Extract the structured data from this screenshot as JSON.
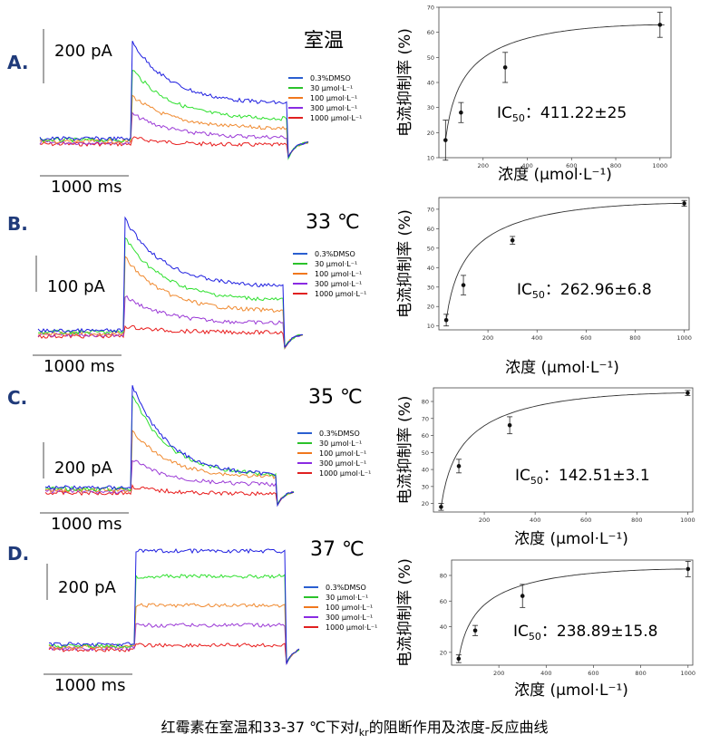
{
  "caption": {
    "before": "红霉素在室温和33-37 ℃下对",
    "italic": "I",
    "sub": "kr",
    "after": "的阻断作用及浓度-反应曲线"
  },
  "legend_colors": [
    "#2a5fd0",
    "#2bc22b",
    "#f0781e",
    "#8a2be2",
    "#e02020"
  ],
  "trace_colors": [
    "#1f1fe0",
    "#2ee02e",
    "#f08a30",
    "#9b3ad6",
    "#e81c1c"
  ],
  "chart_data": [
    {
      "type": "scatter",
      "panel": "A.",
      "temperature": "室温",
      "scale_current": "200 pA",
      "scale_time": "1000 ms",
      "legend": [
        "0.3%DMSO",
        "30 μmol·L⁻¹",
        "100 μmol·L⁻¹",
        "300 μmol·L⁻¹",
        "1000 μmol·L⁻¹"
      ],
      "x": [
        30,
        100,
        300,
        1000
      ],
      "y": [
        17,
        28,
        46,
        63
      ],
      "yerr": [
        8,
        4,
        6,
        5
      ],
      "xlim": [
        0,
        1050
      ],
      "ylim": [
        10,
        70
      ],
      "xticks": [
        200,
        400,
        600,
        800,
        1000
      ],
      "yticks": [
        10,
        20,
        30,
        40,
        50,
        60,
        70
      ],
      "ylabel": "电流抑制率 (%)",
      "xlabel": "浓度 (μmol·L⁻¹)",
      "ic50_label": "IC",
      "ic50_sub": "50",
      "ic50_value": "：411.22±25"
    },
    {
      "type": "scatter",
      "panel": "B.",
      "temperature": "33 ℃",
      "scale_current": "100 pA",
      "scale_time": "1000 ms",
      "legend": [
        "0.3%DMSO",
        "30 μmol·L⁻¹",
        "100 μmol·L⁻¹",
        "300 μmol·L⁻¹",
        "1000 μmol·L⁻¹"
      ],
      "x": [
        30,
        100,
        300,
        1000
      ],
      "y": [
        13,
        31,
        54,
        73
      ],
      "yerr": [
        3,
        5,
        2,
        1.5
      ],
      "xlim": [
        0,
        1020
      ],
      "ylim": [
        8,
        76
      ],
      "xticks": [
        200,
        400,
        600,
        800,
        1000
      ],
      "yticks": [
        10,
        20,
        30,
        40,
        50,
        60,
        70
      ],
      "ylabel": "电流抑制率 (%)",
      "xlabel": "浓度 (μmol·L⁻¹)",
      "ic50_label": "IC",
      "ic50_sub": "50",
      "ic50_value": "：262.96±6.8"
    },
    {
      "type": "scatter",
      "panel": "C.",
      "temperature": "35 ℃",
      "scale_current": "200 pA",
      "scale_time": "1000 ms",
      "legend": [
        "0.3%DMSO",
        "30 μmol·L⁻¹",
        "100 μmol·L⁻¹",
        "300 μmol·L⁻¹",
        "1000 μmol·L⁻¹"
      ],
      "x": [
        30,
        100,
        300,
        1000
      ],
      "y": [
        18,
        42,
        66,
        85
      ],
      "yerr": [
        2,
        4,
        5,
        1.5
      ],
      "xlim": [
        0,
        1020
      ],
      "ylim": [
        15,
        88
      ],
      "xticks": [
        200,
        400,
        600,
        800,
        1000
      ],
      "yticks": [
        20,
        30,
        40,
        50,
        60,
        70,
        80
      ],
      "ylabel": "电流抑制率 (%)",
      "xlabel": "浓度 (μmol·L⁻¹)",
      "ic50_label": "IC",
      "ic50_sub": "50",
      "ic50_value": "：142.51±3.1"
    },
    {
      "type": "scatter",
      "panel": "D.",
      "temperature": "37 ℃",
      "scale_current": "200 pA",
      "scale_time": "1000 ms",
      "legend": [
        "0.3%DMSO",
        "30 μmol·L⁻¹",
        "100 μmol·L⁻¹",
        "300 μmol·L⁻¹",
        "1000 μmol·L⁻¹"
      ],
      "x": [
        30,
        100,
        300,
        1000
      ],
      "y": [
        15,
        37,
        64,
        85
      ],
      "yerr": [
        3,
        4,
        9,
        6
      ],
      "xlim": [
        0,
        1020
      ],
      "ylim": [
        10,
        92
      ],
      "xticks": [
        200,
        400,
        600,
        800,
        1000
      ],
      "yticks": [
        20,
        40,
        60,
        80
      ],
      "ylabel": "电流抑制率 (%)",
      "xlabel": "浓度 (μmol·L⁻¹)",
      "ic50_label": "IC",
      "ic50_sub": "50",
      "ic50_value": "：238.89±15.8"
    }
  ]
}
